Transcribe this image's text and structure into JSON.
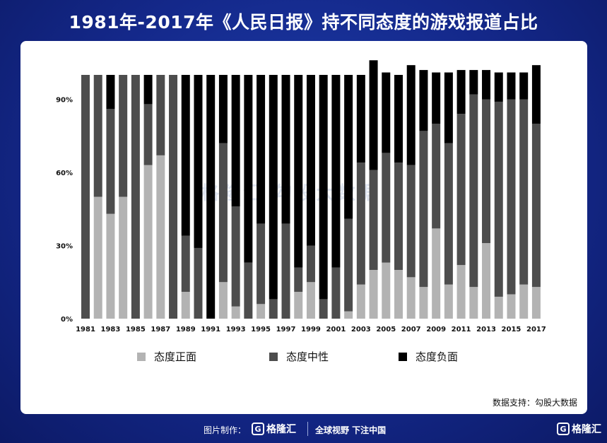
{
  "title": "1981年-2017年《人民日报》持不同态度的游戏报道占比",
  "source": "数据支持：勾股大数据",
  "watermark": "格隆汇  勾股大数据",
  "footer": {
    "made_by": "图片制作：",
    "logo_mark": "G",
    "logo_text": "格隆汇",
    "slogan": "全球视野 下注中国",
    "right_logo_text": "格隆汇"
  },
  "colors": {
    "positive": "#b3b3b3",
    "neutral": "#4d4d4d",
    "negative": "#000000",
    "background": "#14288a"
  },
  "chart_data": {
    "type": "bar",
    "stacked": true,
    "categories": [
      "1981",
      "1982",
      "1983",
      "1984",
      "1985",
      "1986",
      "1987",
      "1988",
      "1989",
      "1990",
      "1991",
      "1992",
      "1993",
      "1994",
      "1995",
      "1996",
      "1997",
      "1998",
      "1999",
      "2000",
      "2001",
      "2002",
      "2003",
      "2004",
      "2005",
      "2006",
      "2007",
      "2008",
      "2009",
      "2010",
      "2011",
      "2012",
      "2013",
      "2014",
      "2015",
      "2016",
      "2017"
    ],
    "x_tick_labels": [
      "1981",
      "1983",
      "1985",
      "1987",
      "1989",
      "1991",
      "1993",
      "1995",
      "1997",
      "1999",
      "2001",
      "2003",
      "2005",
      "2007",
      "2009",
      "2011",
      "2013",
      "2015",
      "2017"
    ],
    "y_tick_labels": [
      "0%",
      "30%",
      "60%",
      "90%"
    ],
    "ylim": [
      0,
      107
    ],
    "legend_position": "bottom",
    "series": [
      {
        "name": "态度正面",
        "values": [
          0,
          50,
          43,
          50,
          0,
          63,
          67,
          0,
          11,
          0,
          0,
          15,
          5,
          0,
          6,
          0,
          0,
          11,
          15,
          0,
          0,
          3,
          14,
          20,
          23,
          20,
          17,
          13,
          37,
          14,
          22,
          13,
          31,
          9,
          10,
          14,
          13
        ]
      },
      {
        "name": "态度中性",
        "values": [
          100,
          50,
          43,
          50,
          100,
          25,
          33,
          100,
          23,
          29,
          0,
          57,
          41,
          23,
          33,
          8,
          39,
          10,
          15,
          8,
          21,
          38,
          50,
          41,
          45,
          44,
          46,
          64,
          43,
          58,
          62,
          79,
          59,
          80,
          80,
          76,
          67
        ]
      },
      {
        "name": "态度负面",
        "values": [
          0,
          0,
          14,
          0,
          0,
          12,
          0,
          0,
          66,
          71,
          100,
          28,
          54,
          77,
          61,
          92,
          61,
          79,
          70,
          92,
          79,
          59,
          36,
          45,
          33,
          36,
          41,
          25,
          21,
          29,
          18,
          10,
          12,
          12,
          11,
          11,
          24
        ]
      }
    ],
    "title": "1981年-2017年《人民日报》持不同态度的游戏报道占比",
    "xlabel": "",
    "ylabel": "",
    "grid": false
  }
}
